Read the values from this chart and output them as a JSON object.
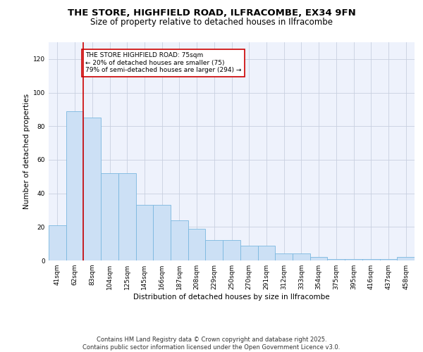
{
  "title_line1": "THE STORE, HIGHFIELD ROAD, ILFRACOMBE, EX34 9FN",
  "title_line2": "Size of property relative to detached houses in Ilfracombe",
  "xlabel": "Distribution of detached houses by size in Ilfracombe",
  "ylabel": "Number of detached properties",
  "categories": [
    "41sqm",
    "62sqm",
    "83sqm",
    "104sqm",
    "125sqm",
    "145sqm",
    "166sqm",
    "187sqm",
    "208sqm",
    "229sqm",
    "250sqm",
    "270sqm",
    "291sqm",
    "312sqm",
    "333sqm",
    "354sqm",
    "375sqm",
    "395sqm",
    "416sqm",
    "437sqm",
    "458sqm"
  ],
  "values": [
    21,
    89,
    85,
    52,
    52,
    33,
    33,
    24,
    19,
    12,
    12,
    9,
    9,
    4,
    4,
    2,
    1,
    1,
    1,
    1,
    2
  ],
  "bar_color": "#cce0f5",
  "bar_edge_color": "#7ab8e0",
  "vline_x": 1.5,
  "vline_color": "#cc0000",
  "annotation_text": "THE STORE HIGHFIELD ROAD: 75sqm\n← 20% of detached houses are smaller (75)\n79% of semi-detached houses are larger (294) →",
  "annotation_box_color": "#cc0000",
  "annotation_box_facecolor": "white",
  "ylim": [
    0,
    130
  ],
  "yticks": [
    0,
    20,
    40,
    60,
    80,
    100,
    120
  ],
  "grid_color": "#c8d0e0",
  "background_color": "#eef2fc",
  "footnote": "Contains HM Land Registry data © Crown copyright and database right 2025.\nContains public sector information licensed under the Open Government Licence v3.0.",
  "title_fontsize": 9.5,
  "subtitle_fontsize": 8.5,
  "axis_label_fontsize": 7.5,
  "tick_fontsize": 6.5,
  "footnote_fontsize": 6,
  "annotation_fontsize": 6.5
}
